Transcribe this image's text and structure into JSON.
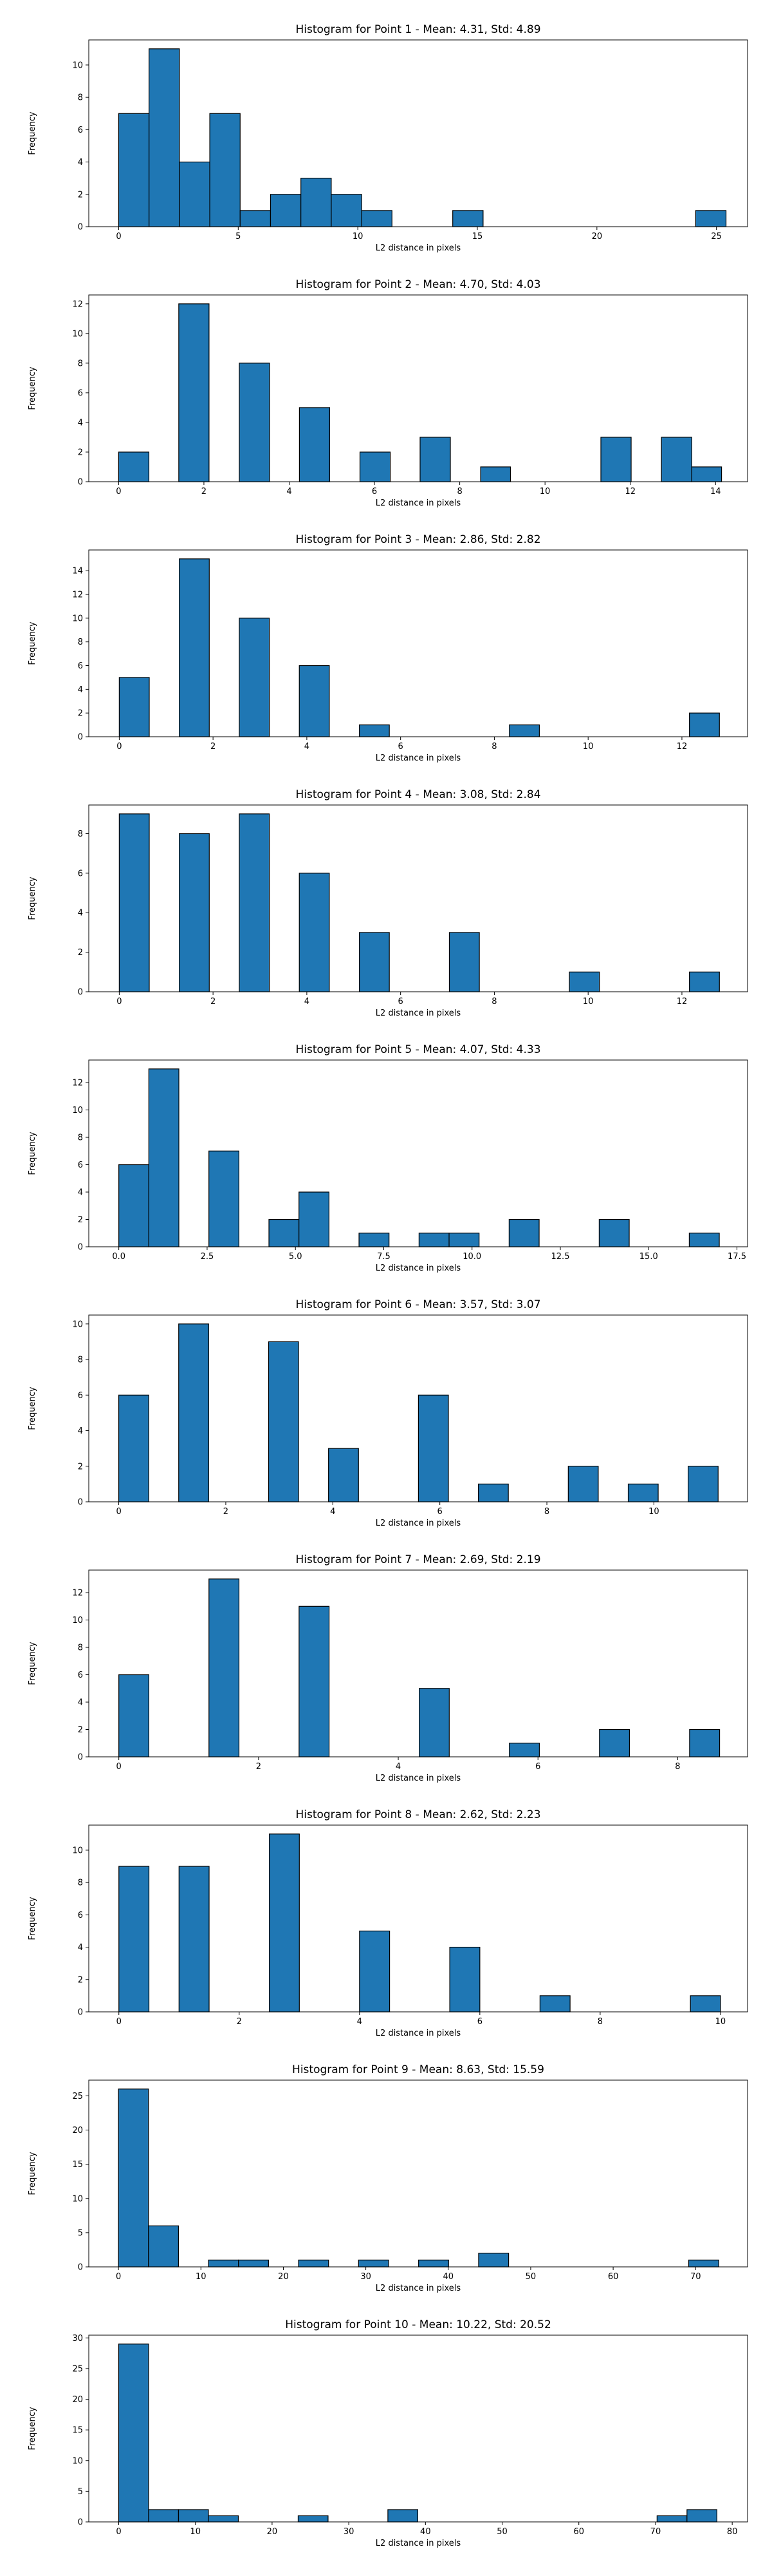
{
  "colors": {
    "bar_fill": "#1f77b4",
    "bar_edge": "#000000",
    "axis": "#000000"
  },
  "chart_data": [
    {
      "type": "bar",
      "title": "Histogram for Point 1 - Mean: 4.31, Std: 4.89",
      "xlabel": "L2 distance in pixels",
      "ylabel": "Frequency",
      "xlim": [
        -1.25,
        26.3
      ],
      "ylim": [
        0,
        11.55
      ],
      "xticks": [
        0,
        5,
        10,
        15,
        20,
        25
      ],
      "xtick_labels": [
        "0",
        "5",
        "10",
        "15",
        "20",
        "25"
      ],
      "yticks": [
        0,
        2,
        4,
        6,
        8,
        10
      ],
      "ytick_labels": [
        "0",
        "2",
        "4",
        "6",
        "8",
        "10"
      ],
      "bars": [
        {
          "x0": 0.0,
          "x1": 1.27,
          "value": 7
        },
        {
          "x0": 1.27,
          "x1": 2.54,
          "value": 11
        },
        {
          "x0": 2.54,
          "x1": 3.81,
          "value": 4
        },
        {
          "x0": 3.81,
          "x1": 5.08,
          "value": 7
        },
        {
          "x0": 5.08,
          "x1": 6.35,
          "value": 1
        },
        {
          "x0": 6.35,
          "x1": 7.62,
          "value": 2
        },
        {
          "x0": 7.62,
          "x1": 8.89,
          "value": 3
        },
        {
          "x0": 8.89,
          "x1": 10.16,
          "value": 2
        },
        {
          "x0": 10.16,
          "x1": 11.43,
          "value": 1
        },
        {
          "x0": 13.97,
          "x1": 15.24,
          "value": 1
        },
        {
          "x0": 24.13,
          "x1": 25.4,
          "value": 1
        }
      ]
    },
    {
      "type": "bar",
      "title": "Histogram for Point 2 - Mean: 4.70, Std: 4.03",
      "xlabel": "L2 distance in pixels",
      "ylabel": "Frequency",
      "xlim": [
        -0.7,
        14.75
      ],
      "ylim": [
        0,
        12.6
      ],
      "xticks": [
        0,
        2,
        4,
        6,
        8,
        10,
        12,
        14
      ],
      "xtick_labels": [
        "0",
        "2",
        "4",
        "6",
        "8",
        "10",
        "12",
        "14"
      ],
      "yticks": [
        0,
        2,
        4,
        6,
        8,
        10,
        12
      ],
      "ytick_labels": [
        "0",
        "2",
        "4",
        "6",
        "8",
        "10",
        "12"
      ],
      "bars": [
        {
          "x0": 0.0,
          "x1": 0.71,
          "value": 2
        },
        {
          "x0": 1.41,
          "x1": 2.12,
          "value": 12
        },
        {
          "x0": 2.83,
          "x1": 3.54,
          "value": 8
        },
        {
          "x0": 4.24,
          "x1": 4.95,
          "value": 5
        },
        {
          "x0": 5.66,
          "x1": 6.37,
          "value": 2
        },
        {
          "x0": 7.07,
          "x1": 7.78,
          "value": 3
        },
        {
          "x0": 8.49,
          "x1": 9.19,
          "value": 1
        },
        {
          "x0": 11.31,
          "x1": 12.02,
          "value": 3
        },
        {
          "x0": 12.73,
          "x1": 13.44,
          "value": 3
        },
        {
          "x0": 13.44,
          "x1": 14.14,
          "value": 1
        }
      ]
    },
    {
      "type": "bar",
      "title": "Histogram for Point 3 - Mean: 2.86, Std: 2.82",
      "xlabel": "L2 distance in pixels",
      "ylabel": "Frequency",
      "xlim": [
        -0.65,
        13.4
      ],
      "ylim": [
        0,
        15.75
      ],
      "xticks": [
        0,
        2,
        4,
        6,
        8,
        10,
        12
      ],
      "xtick_labels": [
        "0",
        "2",
        "4",
        "6",
        "8",
        "10",
        "12"
      ],
      "yticks": [
        0,
        2,
        4,
        6,
        8,
        10,
        12,
        14
      ],
      "ytick_labels": [
        "0",
        "2",
        "4",
        "6",
        "8",
        "10",
        "12",
        "14"
      ],
      "bars": [
        {
          "x0": 0.0,
          "x1": 0.64,
          "value": 5
        },
        {
          "x0": 1.28,
          "x1": 1.92,
          "value": 15
        },
        {
          "x0": 2.56,
          "x1": 3.2,
          "value": 10
        },
        {
          "x0": 3.84,
          "x1": 4.48,
          "value": 6
        },
        {
          "x0": 5.12,
          "x1": 5.76,
          "value": 1
        },
        {
          "x0": 8.32,
          "x1": 8.96,
          "value": 1
        },
        {
          "x0": 12.16,
          "x1": 12.8,
          "value": 2
        }
      ]
    },
    {
      "type": "bar",
      "title": "Histogram for Point 4 - Mean: 3.08, Std: 2.84",
      "xlabel": "L2 distance in pixels",
      "ylabel": "Frequency",
      "xlim": [
        -0.65,
        13.4
      ],
      "ylim": [
        0,
        9.45
      ],
      "xticks": [
        0,
        2,
        4,
        6,
        8,
        10,
        12
      ],
      "xtick_labels": [
        "0",
        "2",
        "4",
        "6",
        "8",
        "10",
        "12"
      ],
      "yticks": [
        0,
        2,
        4,
        6,
        8
      ],
      "ytick_labels": [
        "0",
        "2",
        "4",
        "6",
        "8"
      ],
      "bars": [
        {
          "x0": 0.0,
          "x1": 0.64,
          "value": 9
        },
        {
          "x0": 1.28,
          "x1": 1.92,
          "value": 8
        },
        {
          "x0": 2.56,
          "x1": 3.2,
          "value": 9
        },
        {
          "x0": 3.84,
          "x1": 4.48,
          "value": 6
        },
        {
          "x0": 5.12,
          "x1": 5.76,
          "value": 3
        },
        {
          "x0": 7.04,
          "x1": 7.68,
          "value": 3
        },
        {
          "x0": 9.6,
          "x1": 10.24,
          "value": 1
        },
        {
          "x0": 12.16,
          "x1": 12.8,
          "value": 1
        }
      ]
    },
    {
      "type": "bar",
      "title": "Histogram for Point 5 - Mean: 4.07, Std: 4.33",
      "xlabel": "L2 distance in pixels",
      "ylabel": "Frequency",
      "xlim": [
        -0.85,
        17.8
      ],
      "ylim": [
        0,
        13.65
      ],
      "xticks": [
        0.0,
        2.5,
        5.0,
        7.5,
        10.0,
        12.5,
        15.0,
        17.5
      ],
      "xtick_labels": [
        "0.0",
        "2.5",
        "5.0",
        "7.5",
        "10.0",
        "12.5",
        "15.0",
        "17.5"
      ],
      "yticks": [
        0,
        2,
        4,
        6,
        8,
        10,
        12
      ],
      "ytick_labels": [
        "0",
        "2",
        "4",
        "6",
        "8",
        "10",
        "12"
      ],
      "bars": [
        {
          "x0": 0.0,
          "x1": 0.85,
          "value": 6
        },
        {
          "x0": 0.85,
          "x1": 1.7,
          "value": 13
        },
        {
          "x0": 2.55,
          "x1": 3.4,
          "value": 7
        },
        {
          "x0": 4.25,
          "x1": 5.1,
          "value": 2
        },
        {
          "x0": 5.1,
          "x1": 5.95,
          "value": 4
        },
        {
          "x0": 6.8,
          "x1": 7.65,
          "value": 1
        },
        {
          "x0": 8.5,
          "x1": 9.35,
          "value": 1
        },
        {
          "x0": 9.35,
          "x1": 10.2,
          "value": 1
        },
        {
          "x0": 11.05,
          "x1": 11.9,
          "value": 2
        },
        {
          "x0": 13.6,
          "x1": 14.45,
          "value": 2
        },
        {
          "x0": 16.15,
          "x1": 17.0,
          "value": 1
        }
      ]
    },
    {
      "type": "bar",
      "title": "Histogram for Point 6 - Mean: 3.57, Std: 3.07",
      "xlabel": "L2 distance in pixels",
      "ylabel": "Frequency",
      "xlim": [
        -0.56,
        11.75
      ],
      "ylim": [
        0,
        10.5
      ],
      "xticks": [
        0,
        2,
        4,
        6,
        8,
        10
      ],
      "xtick_labels": [
        "0",
        "2",
        "4",
        "6",
        "8",
        "10"
      ],
      "yticks": [
        0,
        2,
        4,
        6,
        8,
        10
      ],
      "ytick_labels": [
        "0",
        "2",
        "4",
        "6",
        "8",
        "10"
      ],
      "bars": [
        {
          "x0": 0.0,
          "x1": 0.56,
          "value": 6
        },
        {
          "x0": 1.12,
          "x1": 1.68,
          "value": 10
        },
        {
          "x0": 2.8,
          "x1": 3.36,
          "value": 9
        },
        {
          "x0": 3.92,
          "x1": 4.48,
          "value": 3
        },
        {
          "x0": 5.6,
          "x1": 6.16,
          "value": 6
        },
        {
          "x0": 6.72,
          "x1": 7.28,
          "value": 1
        },
        {
          "x0": 8.4,
          "x1": 8.96,
          "value": 2
        },
        {
          "x0": 9.52,
          "x1": 10.08,
          "value": 1
        },
        {
          "x0": 10.64,
          "x1": 11.2,
          "value": 2
        }
      ]
    },
    {
      "type": "bar",
      "title": "Histogram for Point 7 - Mean: 2.69, Std: 2.19",
      "xlabel": "L2 distance in pixels",
      "ylabel": "Frequency",
      "xlim": [
        -0.43,
        9.0
      ],
      "ylim": [
        0,
        13.65
      ],
      "xticks": [
        0,
        2,
        4,
        6,
        8
      ],
      "xtick_labels": [
        "0",
        "2",
        "4",
        "6",
        "8"
      ],
      "yticks": [
        0,
        2,
        4,
        6,
        8,
        10,
        12
      ],
      "ytick_labels": [
        "0",
        "2",
        "4",
        "6",
        "8",
        "10",
        "12"
      ],
      "bars": [
        {
          "x0": 0.0,
          "x1": 0.43,
          "value": 6
        },
        {
          "x0": 1.29,
          "x1": 1.72,
          "value": 13
        },
        {
          "x0": 2.58,
          "x1": 3.01,
          "value": 11
        },
        {
          "x0": 4.3,
          "x1": 4.73,
          "value": 5
        },
        {
          "x0": 5.59,
          "x1": 6.02,
          "value": 1
        },
        {
          "x0": 6.88,
          "x1": 7.31,
          "value": 2
        },
        {
          "x0": 8.17,
          "x1": 8.6,
          "value": 2
        }
      ]
    },
    {
      "type": "bar",
      "title": "Histogram for Point 8 - Mean: 2.62, Std: 2.23",
      "xlabel": "L2 distance in pixels",
      "ylabel": "Frequency",
      "xlim": [
        -0.5,
        10.45
      ],
      "ylim": [
        0,
        11.55
      ],
      "xticks": [
        0,
        2,
        4,
        6,
        8,
        10
      ],
      "xtick_labels": [
        "0",
        "2",
        "4",
        "6",
        "8",
        "10"
      ],
      "yticks": [
        0,
        2,
        4,
        6,
        8,
        10
      ],
      "ytick_labels": [
        "0",
        "2",
        "4",
        "6",
        "8",
        "10"
      ],
      "bars": [
        {
          "x0": 0.0,
          "x1": 0.5,
          "value": 9
        },
        {
          "x0": 1.0,
          "x1": 1.5,
          "value": 9
        },
        {
          "x0": 2.5,
          "x1": 3.0,
          "value": 11
        },
        {
          "x0": 4.0,
          "x1": 4.5,
          "value": 5
        },
        {
          "x0": 5.5,
          "x1": 6.0,
          "value": 4
        },
        {
          "x0": 7.0,
          "x1": 7.5,
          "value": 1
        },
        {
          "x0": 9.5,
          "x1": 10.0,
          "value": 1
        }
      ]
    },
    {
      "type": "bar",
      "title": "Histogram for Point 9 - Mean: 8.63, Std: 15.59",
      "xlabel": "L2 distance in pixels",
      "ylabel": "Frequency",
      "xlim": [
        -3.6,
        76.3
      ],
      "ylim": [
        0,
        27.3
      ],
      "xticks": [
        0,
        10,
        20,
        30,
        40,
        50,
        60,
        70
      ],
      "xtick_labels": [
        "0",
        "10",
        "20",
        "30",
        "40",
        "50",
        "60",
        "70"
      ],
      "yticks": [
        0,
        5,
        10,
        15,
        20,
        25
      ],
      "ytick_labels": [
        "0",
        "5",
        "10",
        "15",
        "20",
        "25"
      ],
      "bars": [
        {
          "x0": 0.0,
          "x1": 3.64,
          "value": 26
        },
        {
          "x0": 3.64,
          "x1": 7.28,
          "value": 6
        },
        {
          "x0": 10.92,
          "x1": 14.56,
          "value": 1
        },
        {
          "x0": 14.56,
          "x1": 18.2,
          "value": 1
        },
        {
          "x0": 21.84,
          "x1": 25.48,
          "value": 1
        },
        {
          "x0": 29.12,
          "x1": 32.76,
          "value": 1
        },
        {
          "x0": 36.4,
          "x1": 40.04,
          "value": 1
        },
        {
          "x0": 43.68,
          "x1": 47.32,
          "value": 2
        },
        {
          "x0": 69.16,
          "x1": 72.8,
          "value": 1
        }
      ]
    },
    {
      "type": "bar",
      "title": "Histogram for Point 10 - Mean: 10.22, Std: 20.52",
      "xlabel": "L2 distance in pixels",
      "ylabel": "Frequency",
      "xlim": [
        -3.9,
        82.0
      ],
      "ylim": [
        0,
        30.45
      ],
      "xticks": [
        0,
        10,
        20,
        30,
        40,
        50,
        60,
        70,
        80
      ],
      "xtick_labels": [
        "0",
        "10",
        "20",
        "30",
        "40",
        "50",
        "60",
        "70",
        "80"
      ],
      "yticks": [
        0,
        5,
        10,
        15,
        20,
        25,
        30
      ],
      "ytick_labels": [
        "0",
        "5",
        "10",
        "15",
        "20",
        "25",
        "30"
      ],
      "bars": [
        {
          "x0": 0.0,
          "x1": 3.9,
          "value": 29
        },
        {
          "x0": 3.9,
          "x1": 7.8,
          "value": 2
        },
        {
          "x0": 7.8,
          "x1": 11.7,
          "value": 2
        },
        {
          "x0": 11.7,
          "x1": 15.6,
          "value": 1
        },
        {
          "x0": 23.4,
          "x1": 27.3,
          "value": 1
        },
        {
          "x0": 35.1,
          "x1": 39.0,
          "value": 2
        },
        {
          "x0": 70.2,
          "x1": 74.1,
          "value": 1
        },
        {
          "x0": 74.1,
          "x1": 78.0,
          "value": 2
        }
      ]
    }
  ]
}
